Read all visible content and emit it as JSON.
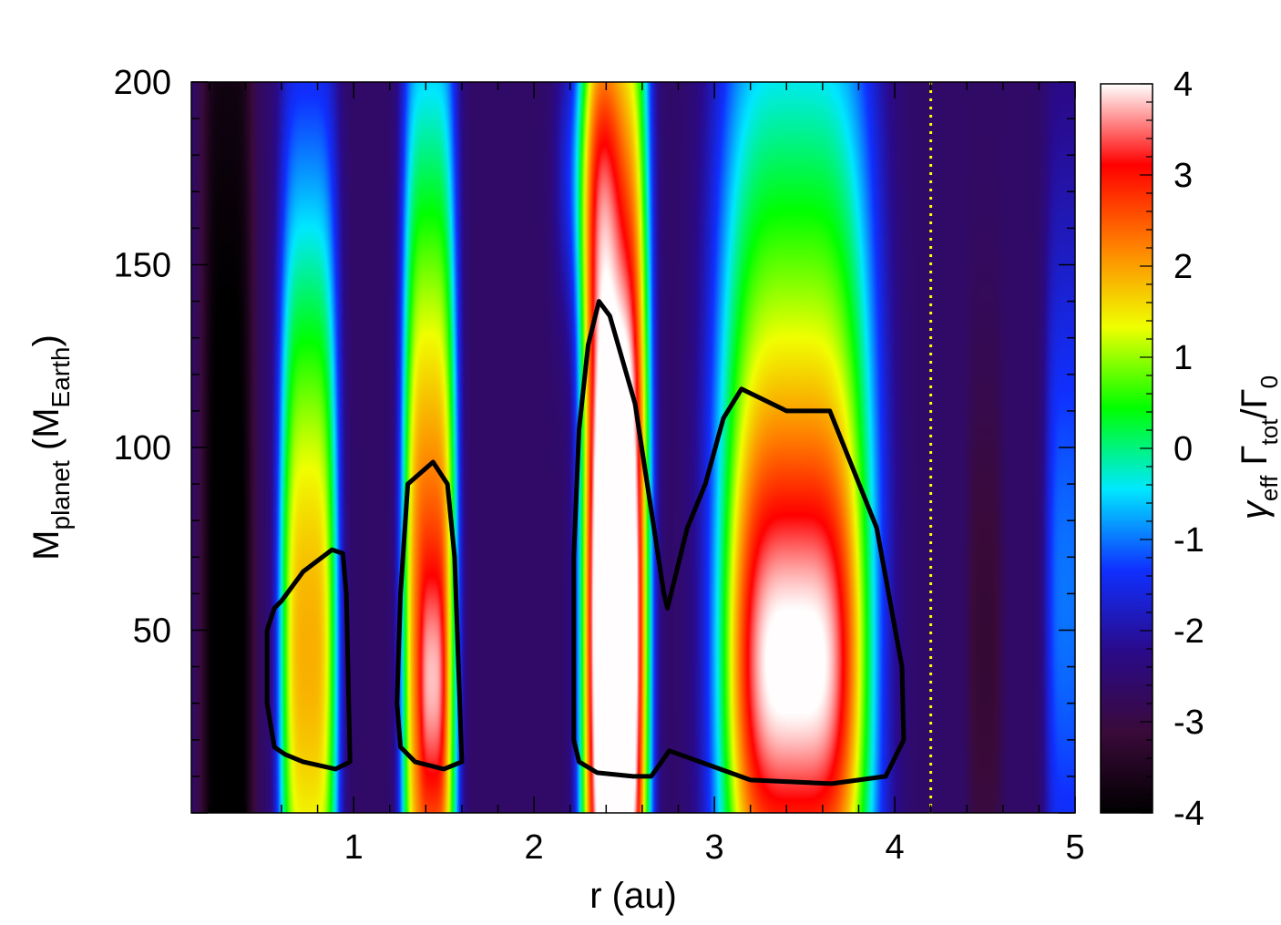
{
  "chart_data": {
    "type": "heatmap",
    "xlabel": "r (au)",
    "ylabel": {
      "main": "M",
      "sub1": "planet",
      "mid": " (M",
      "sub2": "Earth",
      "end": ")"
    },
    "colorbar_label": {
      "gamma": "γ",
      "sub_eff": "eff",
      "Gamma": " Γ",
      "sub_tot": "tot",
      "slash": "/Γ",
      "sub_0": "0"
    },
    "xlim": [
      0.1,
      5
    ],
    "ylim": [
      0,
      200
    ],
    "clim": [
      -4,
      4
    ],
    "x_ticks": [
      1,
      2,
      3,
      4,
      5
    ],
    "x_tick_labels": [
      "1",
      "2",
      "3",
      "4",
      "5"
    ],
    "y_ticks": [
      50,
      100,
      150,
      200
    ],
    "y_tick_labels": [
      "50",
      "100",
      "150",
      "200"
    ],
    "c_ticks": [
      -4,
      -3,
      -2,
      -1,
      0,
      1,
      2,
      3,
      4
    ],
    "c_tick_labels": [
      "-4",
      "-3",
      "-2",
      "-1",
      "0",
      "1",
      "2",
      "3",
      "4"
    ],
    "colormap": [
      "#000000",
      "#3a0a3a",
      "#2a0a8a",
      "#1030ff",
      "#00e8ff",
      "#00ff00",
      "#f0ff00",
      "#ff8000",
      "#ff0000",
      "#ffffff"
    ],
    "dotted_line_r": 4.2,
    "dotted_line_color": "#ffff00",
    "background_value": -2.6,
    "features": [
      {
        "r": 0.3,
        "m": 35,
        "dr": 0.12,
        "dm": 200,
        "value": -1.6
      },
      {
        "r": 0.75,
        "m": 45,
        "dr": 0.14,
        "dm": 95,
        "value": 4.5
      },
      {
        "r": 1.42,
        "m": 45,
        "dr": 0.13,
        "dm": 115,
        "value": 5.2
      },
      {
        "r": 1.44,
        "m": 35,
        "dr": 0.06,
        "dm": 25,
        "value": 1.2
      },
      {
        "r": 2.45,
        "m": 55,
        "dr": 0.16,
        "dm": 140,
        "value": 7.0
      },
      {
        "r": 2.45,
        "m": 50,
        "dr": 0.1,
        "dm": 50,
        "value": 2.0
      },
      {
        "r": 3.45,
        "m": 55,
        "dr": 0.38,
        "dm": 120,
        "value": 4.6
      },
      {
        "r": 3.45,
        "m": 38,
        "dr": 0.3,
        "dm": 40,
        "value": 2.2
      },
      {
        "r": 2.3,
        "m": 175,
        "dr": 0.15,
        "dm": 30,
        "value": 1.2
      },
      {
        "r": 4.5,
        "m": 45,
        "dr": 0.08,
        "dm": 60,
        "value": -0.6
      },
      {
        "r": 4.95,
        "m": 60,
        "dr": 0.1,
        "dm": 80,
        "value": 1.6
      }
    ],
    "contours": [
      {
        "level": 0,
        "points": [
          [
            0.56,
            56
          ],
          [
            0.6,
            58
          ],
          [
            0.72,
            66
          ],
          [
            0.88,
            72
          ],
          [
            0.94,
            71
          ],
          [
            0.96,
            60
          ],
          [
            0.98,
            14
          ],
          [
            0.9,
            12
          ],
          [
            0.72,
            14
          ],
          [
            0.62,
            16
          ],
          [
            0.56,
            18
          ],
          [
            0.52,
            30
          ],
          [
            0.52,
            50
          ],
          [
            0.56,
            56
          ]
        ]
      },
      {
        "level": 0,
        "points": [
          [
            1.3,
            90
          ],
          [
            1.44,
            96
          ],
          [
            1.52,
            90
          ],
          [
            1.56,
            70
          ],
          [
            1.6,
            14
          ],
          [
            1.5,
            12
          ],
          [
            1.34,
            14
          ],
          [
            1.26,
            18
          ],
          [
            1.24,
            30
          ],
          [
            1.26,
            60
          ],
          [
            1.3,
            90
          ]
        ]
      },
      {
        "level": 0,
        "points": [
          [
            2.36,
            140
          ],
          [
            2.42,
            136
          ],
          [
            2.56,
            112
          ],
          [
            2.72,
            60
          ],
          [
            2.74,
            56
          ],
          [
            2.85,
            78
          ],
          [
            2.95,
            90
          ],
          [
            3.05,
            108
          ],
          [
            3.15,
            116
          ],
          [
            3.4,
            110
          ],
          [
            3.64,
            110
          ],
          [
            3.9,
            78
          ],
          [
            4.04,
            40
          ],
          [
            4.05,
            20
          ],
          [
            3.95,
            10
          ],
          [
            3.65,
            8
          ],
          [
            3.2,
            9
          ],
          [
            2.92,
            14
          ],
          [
            2.75,
            17
          ],
          [
            2.65,
            10
          ],
          [
            2.55,
            10
          ],
          [
            2.35,
            11
          ],
          [
            2.25,
            14
          ],
          [
            2.22,
            20
          ],
          [
            2.22,
            70
          ],
          [
            2.25,
            105
          ],
          [
            2.3,
            128
          ],
          [
            2.36,
            140
          ]
        ]
      }
    ]
  }
}
